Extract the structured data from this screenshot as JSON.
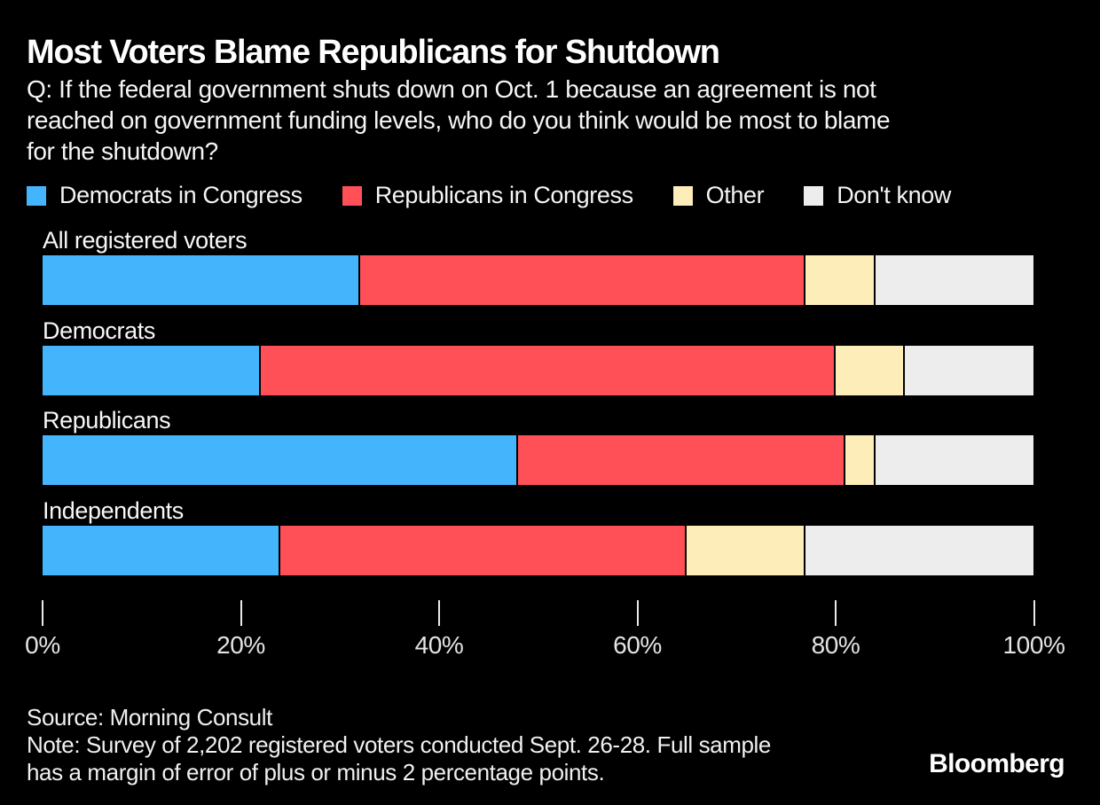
{
  "chart_data": {
    "type": "bar",
    "orientation": "horizontal-stacked",
    "title": "Most Voters Blame Republicans for Shutdown",
    "subtitle": "Q: If the federal government shuts down on Oct. 1 because an agreement is not\nreached on government funding levels, who do you think would be most to blame\nfor the shutdown?",
    "categories": [
      "All registered voters",
      "Democrats",
      "Republicans",
      "Independents"
    ],
    "series": [
      {
        "name": "Democrats in Congress",
        "color": "#44b5fc",
        "values": [
          32,
          22,
          48,
          24
        ]
      },
      {
        "name": "Republicans in Congress",
        "color": "#ff5058",
        "values": [
          45,
          58,
          33,
          41
        ]
      },
      {
        "name": "Other",
        "color": "#fdedb8",
        "values": [
          7,
          7,
          3,
          12
        ]
      },
      {
        "name": "Don't know",
        "color": "#ededed",
        "values": [
          16,
          13,
          16,
          23
        ]
      }
    ],
    "xlim": [
      0,
      100
    ],
    "x_ticks": [
      {
        "value": 0,
        "label": "0%"
      },
      {
        "value": 20,
        "label": "20%"
      },
      {
        "value": 40,
        "label": "40%"
      },
      {
        "value": 60,
        "label": "60%"
      },
      {
        "value": 80,
        "label": "80%"
      },
      {
        "value": 100,
        "label": "100%"
      }
    ],
    "legend_position": "top",
    "grid": false,
    "unit": "percent"
  },
  "footer": {
    "source": "Source: Morning Consult",
    "note": "Note: Survey of 2,202 registered voters conducted Sept. 26-28. Full sample\nhas a margin of error of plus or minus 2 percentage points.",
    "brand": "Bloomberg"
  },
  "colors": {
    "background": "#000000",
    "title_text": "#ffffff",
    "body_text": "#f5f5f5",
    "axis": "#e9e9e9",
    "segment_gap": "#000000"
  }
}
